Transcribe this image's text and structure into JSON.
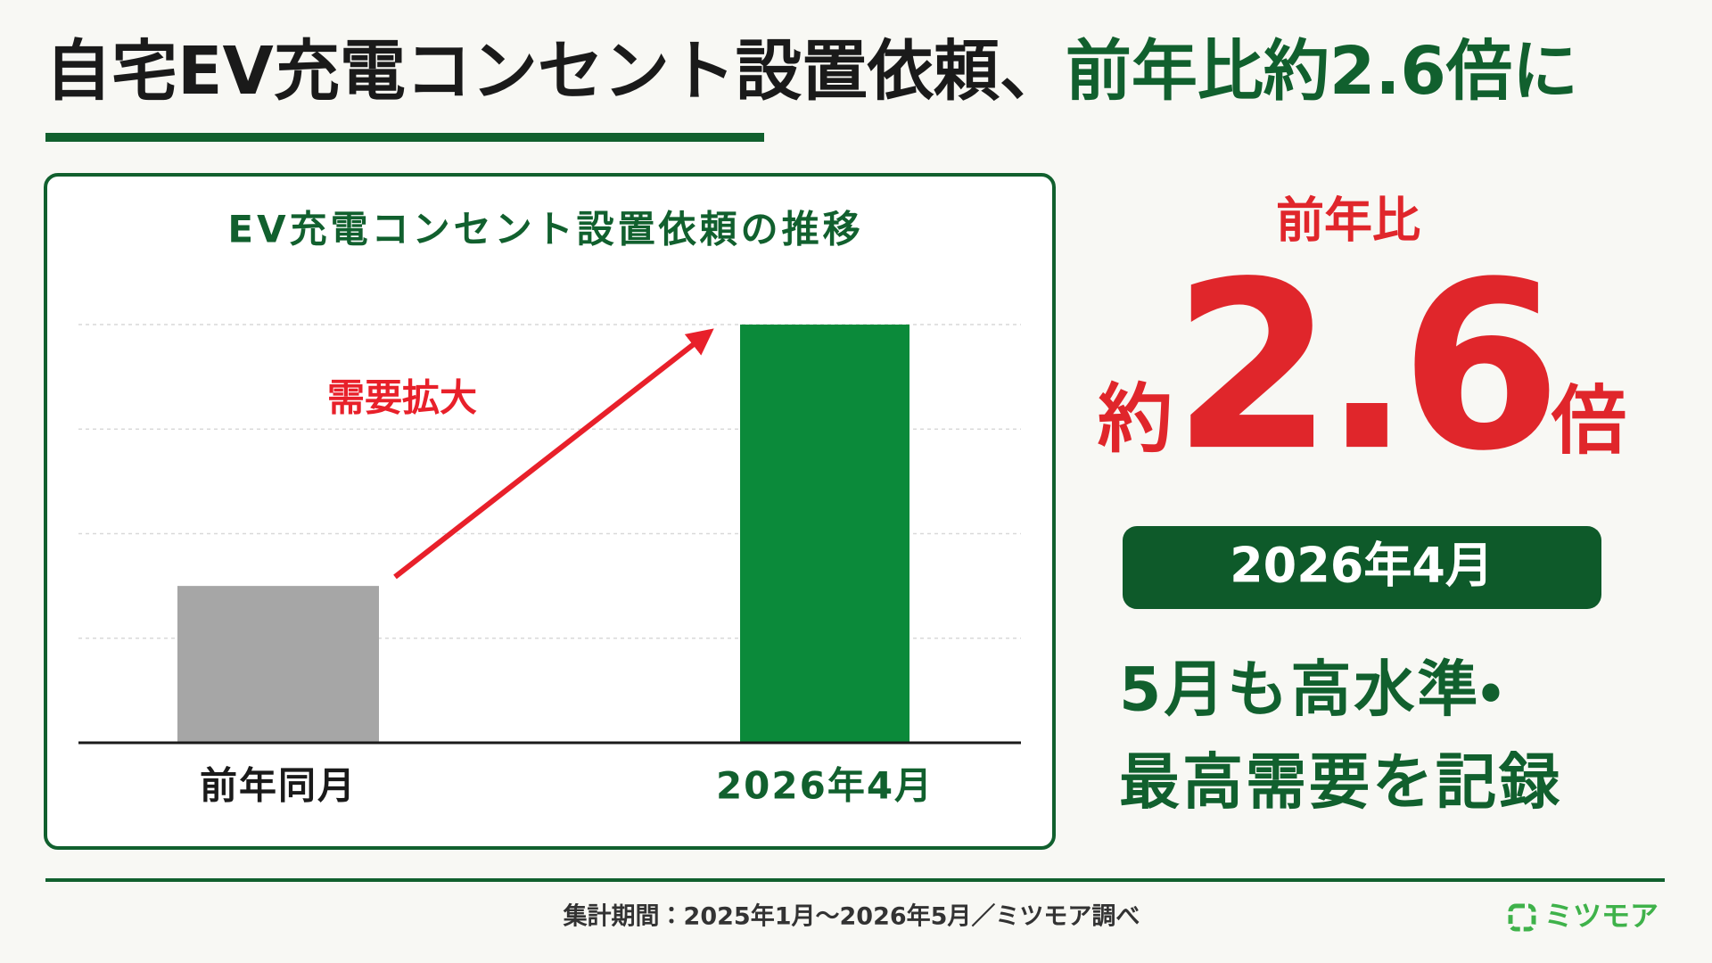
{
  "header": {
    "title": "自宅EV充電コンセント設置依頼、",
    "title_highlight": "前年比約2.6倍に"
  },
  "chart_data": {
    "type": "bar",
    "title": "EV充電コンセント設置依頼の推移",
    "categories": [
      "前年同月",
      "2026年4月"
    ],
    "values": [
      1.5,
      4
    ],
    "colors": [
      "#a6a6a6",
      "#0b8a3a"
    ],
    "ylim": [
      0,
      4
    ],
    "yticks": [
      0,
      1,
      2,
      3,
      4
    ],
    "grid": true,
    "annotation": "需要拡大"
  },
  "highlight": {
    "label": "前年比",
    "prefix": "約",
    "value": 2.6,
    "suffix": "倍",
    "period": "2026年4月",
    "note": [
      "5月も高水準・",
      "最高需要を記録"
    ]
  },
  "footer": {
    "source": "集計期間：2025年1月〜2026年5月／ミツモア調べ",
    "brand": "ミツモア"
  }
}
